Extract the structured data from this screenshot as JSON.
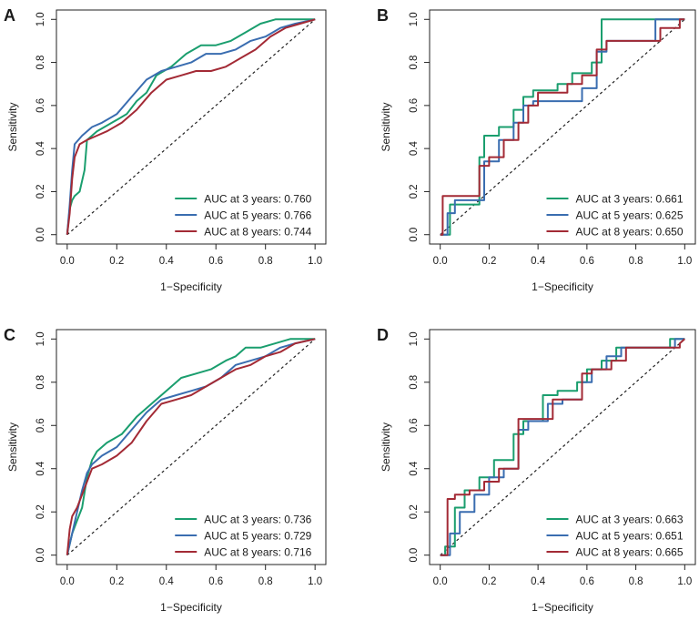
{
  "colors": {
    "green": "#1a9e6e",
    "blue": "#3a6db0",
    "red": "#a32a35",
    "diagonal": "#222222"
  },
  "chart_data": [
    {
      "type": "line",
      "panel": "A",
      "xlabel": "1−Specificity",
      "ylabel": "Sensitivity",
      "xlim": [
        0,
        1
      ],
      "ylim": [
        0,
        1
      ],
      "x_ticks": [
        "0.0",
        "0.2",
        "0.4",
        "0.6",
        "0.8",
        "1.0"
      ],
      "y_ticks": [
        "0.0",
        "0.2",
        "0.4",
        "0.6",
        "0.8",
        "1.0"
      ],
      "legend_position": "bottom-right",
      "reference_line": "diagonal",
      "series": [
        {
          "name": "AUC at 3 years",
          "auc": "0.760",
          "legend": "AUC at 3 years: 0.760",
          "color_key": "green",
          "x": [
            0,
            0.01,
            0.02,
            0.03,
            0.05,
            0.07,
            0.08,
            0.12,
            0.18,
            0.24,
            0.28,
            0.32,
            0.36,
            0.42,
            0.48,
            0.54,
            0.6,
            0.66,
            0.72,
            0.78,
            0.84,
            0.9,
            1.0
          ],
          "y": [
            0,
            0.12,
            0.16,
            0.18,
            0.2,
            0.3,
            0.44,
            0.48,
            0.52,
            0.56,
            0.62,
            0.66,
            0.74,
            0.78,
            0.84,
            0.88,
            0.88,
            0.9,
            0.94,
            0.98,
            1.0,
            1.0,
            1.0
          ]
        },
        {
          "name": "AUC at 5 years",
          "auc": "0.766",
          "legend": "AUC at 5 years: 0.766",
          "color_key": "blue",
          "x": [
            0,
            0.01,
            0.02,
            0.03,
            0.06,
            0.1,
            0.14,
            0.2,
            0.26,
            0.32,
            0.38,
            0.44,
            0.5,
            0.56,
            0.62,
            0.68,
            0.74,
            0.8,
            0.86,
            0.92,
            1.0
          ],
          "y": [
            0,
            0.14,
            0.3,
            0.42,
            0.46,
            0.5,
            0.52,
            0.56,
            0.64,
            0.72,
            0.76,
            0.78,
            0.8,
            0.84,
            0.84,
            0.86,
            0.9,
            0.92,
            0.96,
            0.98,
            1.0
          ]
        },
        {
          "name": "AUC at 8 years",
          "auc": "0.744",
          "legend": "AUC at 8 years: 0.744",
          "color_key": "red",
          "x": [
            0,
            0.01,
            0.02,
            0.03,
            0.05,
            0.08,
            0.12,
            0.16,
            0.22,
            0.28,
            0.34,
            0.4,
            0.46,
            0.52,
            0.58,
            0.64,
            0.7,
            0.76,
            0.82,
            0.88,
            0.94,
            1.0
          ],
          "y": [
            0,
            0.1,
            0.26,
            0.36,
            0.42,
            0.44,
            0.46,
            0.48,
            0.52,
            0.58,
            0.66,
            0.72,
            0.74,
            0.76,
            0.76,
            0.78,
            0.82,
            0.86,
            0.92,
            0.96,
            0.98,
            1.0
          ]
        }
      ]
    },
    {
      "type": "line",
      "panel": "B",
      "xlabel": "1−Specificity",
      "ylabel": "Sensitivity",
      "xlim": [
        0,
        1
      ],
      "ylim": [
        0,
        1
      ],
      "x_ticks": [
        "0.0",
        "0.2",
        "0.4",
        "0.6",
        "0.8",
        "1.0"
      ],
      "y_ticks": [
        "0.0",
        "0.2",
        "0.4",
        "0.6",
        "0.8",
        "1.0"
      ],
      "legend_position": "bottom-right",
      "reference_line": "diagonal",
      "series": [
        {
          "name": "AUC at 3 years",
          "auc": "0.661",
          "legend": "AUC at 3 years: 0.661",
          "color_key": "green",
          "x": [
            0,
            0.04,
            0.04,
            0.16,
            0.16,
            0.18,
            0.18,
            0.24,
            0.24,
            0.3,
            0.3,
            0.34,
            0.34,
            0.38,
            0.38,
            0.48,
            0.48,
            0.54,
            0.54,
            0.62,
            0.62,
            0.66,
            0.66,
            0.88,
            0.88,
            1.0
          ],
          "y": [
            0,
            0,
            0.14,
            0.14,
            0.36,
            0.36,
            0.46,
            0.46,
            0.5,
            0.5,
            0.58,
            0.58,
            0.64,
            0.64,
            0.67,
            0.67,
            0.7,
            0.7,
            0.75,
            0.75,
            0.8,
            0.8,
            1.0,
            1.0,
            1.0,
            1.0
          ]
        },
        {
          "name": "AUC at 5 years",
          "auc": "0.625",
          "legend": "AUC at 5 years: 0.625",
          "color_key": "blue",
          "x": [
            0,
            0.03,
            0.03,
            0.06,
            0.06,
            0.18,
            0.18,
            0.24,
            0.24,
            0.3,
            0.3,
            0.34,
            0.34,
            0.38,
            0.38,
            0.52,
            0.52,
            0.58,
            0.58,
            0.64,
            0.64,
            0.68,
            0.68,
            0.88,
            0.88,
            1.0
          ],
          "y": [
            0,
            0,
            0.1,
            0.1,
            0.16,
            0.16,
            0.34,
            0.34,
            0.44,
            0.44,
            0.52,
            0.52,
            0.6,
            0.6,
            0.62,
            0.62,
            0.62,
            0.62,
            0.68,
            0.68,
            0.85,
            0.85,
            0.9,
            0.9,
            1.0,
            1.0
          ]
        },
        {
          "name": "AUC at 8 years",
          "auc": "0.650",
          "legend": "AUC at 8 years: 0.650",
          "color_key": "red",
          "x": [
            0,
            0.01,
            0.01,
            0.16,
            0.16,
            0.2,
            0.2,
            0.26,
            0.26,
            0.32,
            0.32,
            0.36,
            0.36,
            0.4,
            0.4,
            0.52,
            0.52,
            0.58,
            0.58,
            0.64,
            0.64,
            0.68,
            0.68,
            0.9,
            0.9,
            0.98,
            0.98,
            1.0
          ],
          "y": [
            0,
            0,
            0.18,
            0.18,
            0.32,
            0.32,
            0.36,
            0.36,
            0.44,
            0.44,
            0.52,
            0.52,
            0.6,
            0.6,
            0.66,
            0.66,
            0.7,
            0.7,
            0.74,
            0.74,
            0.86,
            0.86,
            0.9,
            0.9,
            0.96,
            0.96,
            1.0,
            1.0
          ]
        }
      ]
    },
    {
      "type": "line",
      "panel": "C",
      "xlabel": "1−Specificity",
      "ylabel": "Sensitivity",
      "xlim": [
        0,
        1
      ],
      "ylim": [
        0,
        1
      ],
      "x_ticks": [
        "0.0",
        "0.2",
        "0.4",
        "0.6",
        "0.8",
        "1.0"
      ],
      "y_ticks": [
        "0.0",
        "0.2",
        "0.4",
        "0.6",
        "0.8",
        "1.0"
      ],
      "legend_position": "bottom-right",
      "reference_line": "diagonal",
      "series": [
        {
          "name": "AUC at 3 years",
          "auc": "0.736",
          "legend": "AUC at 3 years: 0.736",
          "color_key": "green",
          "x": [
            0,
            0.02,
            0.04,
            0.06,
            0.08,
            0.1,
            0.12,
            0.16,
            0.22,
            0.28,
            0.34,
            0.4,
            0.46,
            0.52,
            0.58,
            0.64,
            0.68,
            0.72,
            0.78,
            0.84,
            0.9,
            1.0
          ],
          "y": [
            0,
            0.1,
            0.16,
            0.22,
            0.36,
            0.44,
            0.48,
            0.52,
            0.56,
            0.64,
            0.7,
            0.76,
            0.82,
            0.84,
            0.86,
            0.9,
            0.92,
            0.96,
            0.96,
            0.98,
            1.0,
            1.0
          ]
        },
        {
          "name": "AUC at 5 years",
          "auc": "0.729",
          "legend": "AUC at 5 years: 0.729",
          "color_key": "blue",
          "x": [
            0,
            0.02,
            0.04,
            0.06,
            0.08,
            0.1,
            0.14,
            0.2,
            0.26,
            0.32,
            0.38,
            0.44,
            0.5,
            0.56,
            0.62,
            0.68,
            0.74,
            0.8,
            0.86,
            0.92,
            1.0
          ],
          "y": [
            0,
            0.1,
            0.2,
            0.3,
            0.38,
            0.42,
            0.46,
            0.5,
            0.58,
            0.66,
            0.72,
            0.74,
            0.76,
            0.78,
            0.82,
            0.88,
            0.9,
            0.92,
            0.96,
            0.98,
            1.0
          ]
        },
        {
          "name": "AUC at 8 years",
          "auc": "0.716",
          "legend": "AUC at 8 years: 0.716",
          "color_key": "red",
          "x": [
            0,
            0.01,
            0.02,
            0.04,
            0.06,
            0.08,
            0.1,
            0.14,
            0.2,
            0.26,
            0.32,
            0.38,
            0.44,
            0.5,
            0.56,
            0.62,
            0.68,
            0.74,
            0.8,
            0.86,
            0.92,
            1.0
          ],
          "y": [
            0,
            0.12,
            0.18,
            0.22,
            0.28,
            0.34,
            0.4,
            0.42,
            0.46,
            0.52,
            0.62,
            0.7,
            0.72,
            0.74,
            0.78,
            0.82,
            0.86,
            0.88,
            0.92,
            0.94,
            0.98,
            1.0
          ]
        }
      ]
    },
    {
      "type": "line",
      "panel": "D",
      "xlabel": "1−Specificity",
      "ylabel": "Sensitivity",
      "xlim": [
        0,
        1
      ],
      "ylim": [
        0,
        1
      ],
      "x_ticks": [
        "0.0",
        "0.2",
        "0.4",
        "0.6",
        "0.8",
        "1.0"
      ],
      "y_ticks": [
        "0.0",
        "0.2",
        "0.4",
        "0.6",
        "0.8",
        "1.0"
      ],
      "legend_position": "bottom-right",
      "reference_line": "diagonal",
      "series": [
        {
          "name": "AUC at 3 years",
          "auc": "0.663",
          "legend": "AUC at 3 years: 0.663",
          "color_key": "green",
          "x": [
            0,
            0.02,
            0.02,
            0.06,
            0.06,
            0.1,
            0.1,
            0.16,
            0.16,
            0.22,
            0.22,
            0.3,
            0.3,
            0.34,
            0.34,
            0.42,
            0.42,
            0.48,
            0.48,
            0.56,
            0.56,
            0.6,
            0.6,
            0.66,
            0.66,
            0.72,
            0.72,
            0.94,
            0.94,
            1.0
          ],
          "y": [
            0,
            0,
            0.04,
            0.04,
            0.22,
            0.22,
            0.3,
            0.3,
            0.36,
            0.36,
            0.44,
            0.44,
            0.56,
            0.56,
            0.62,
            0.62,
            0.74,
            0.74,
            0.76,
            0.76,
            0.8,
            0.8,
            0.86,
            0.86,
            0.9,
            0.9,
            0.96,
            0.96,
            1.0,
            1.0
          ]
        },
        {
          "name": "AUC at 5 years",
          "auc": "0.651",
          "legend": "AUC at 5 years: 0.651",
          "color_key": "blue",
          "x": [
            0,
            0.04,
            0.04,
            0.08,
            0.08,
            0.14,
            0.14,
            0.2,
            0.2,
            0.26,
            0.26,
            0.32,
            0.32,
            0.36,
            0.36,
            0.44,
            0.44,
            0.5,
            0.5,
            0.58,
            0.58,
            0.62,
            0.62,
            0.68,
            0.68,
            0.74,
            0.74,
            0.96,
            0.96,
            1.0
          ],
          "y": [
            0,
            0,
            0.1,
            0.1,
            0.2,
            0.2,
            0.28,
            0.28,
            0.36,
            0.36,
            0.4,
            0.4,
            0.58,
            0.58,
            0.62,
            0.62,
            0.7,
            0.7,
            0.72,
            0.72,
            0.8,
            0.8,
            0.86,
            0.86,
            0.92,
            0.92,
            0.96,
            0.96,
            1.0,
            1.0
          ]
        },
        {
          "name": "AUC at 8 years",
          "auc": "0.665",
          "legend": "AUC at 8 years: 0.665",
          "color_key": "red",
          "x": [
            0,
            0.03,
            0.03,
            0.06,
            0.06,
            0.12,
            0.12,
            0.18,
            0.18,
            0.24,
            0.24,
            0.32,
            0.32,
            0.38,
            0.38,
            0.46,
            0.46,
            0.52,
            0.52,
            0.58,
            0.58,
            0.62,
            0.62,
            0.7,
            0.7,
            0.76,
            0.76,
            0.98,
            0.98,
            1.0
          ],
          "y": [
            0,
            0,
            0.26,
            0.26,
            0.28,
            0.28,
            0.3,
            0.3,
            0.34,
            0.34,
            0.4,
            0.4,
            0.63,
            0.63,
            0.63,
            0.63,
            0.72,
            0.72,
            0.72,
            0.72,
            0.84,
            0.84,
            0.86,
            0.86,
            0.9,
            0.9,
            0.96,
            0.96,
            0.98,
            1.0
          ]
        }
      ]
    }
  ]
}
